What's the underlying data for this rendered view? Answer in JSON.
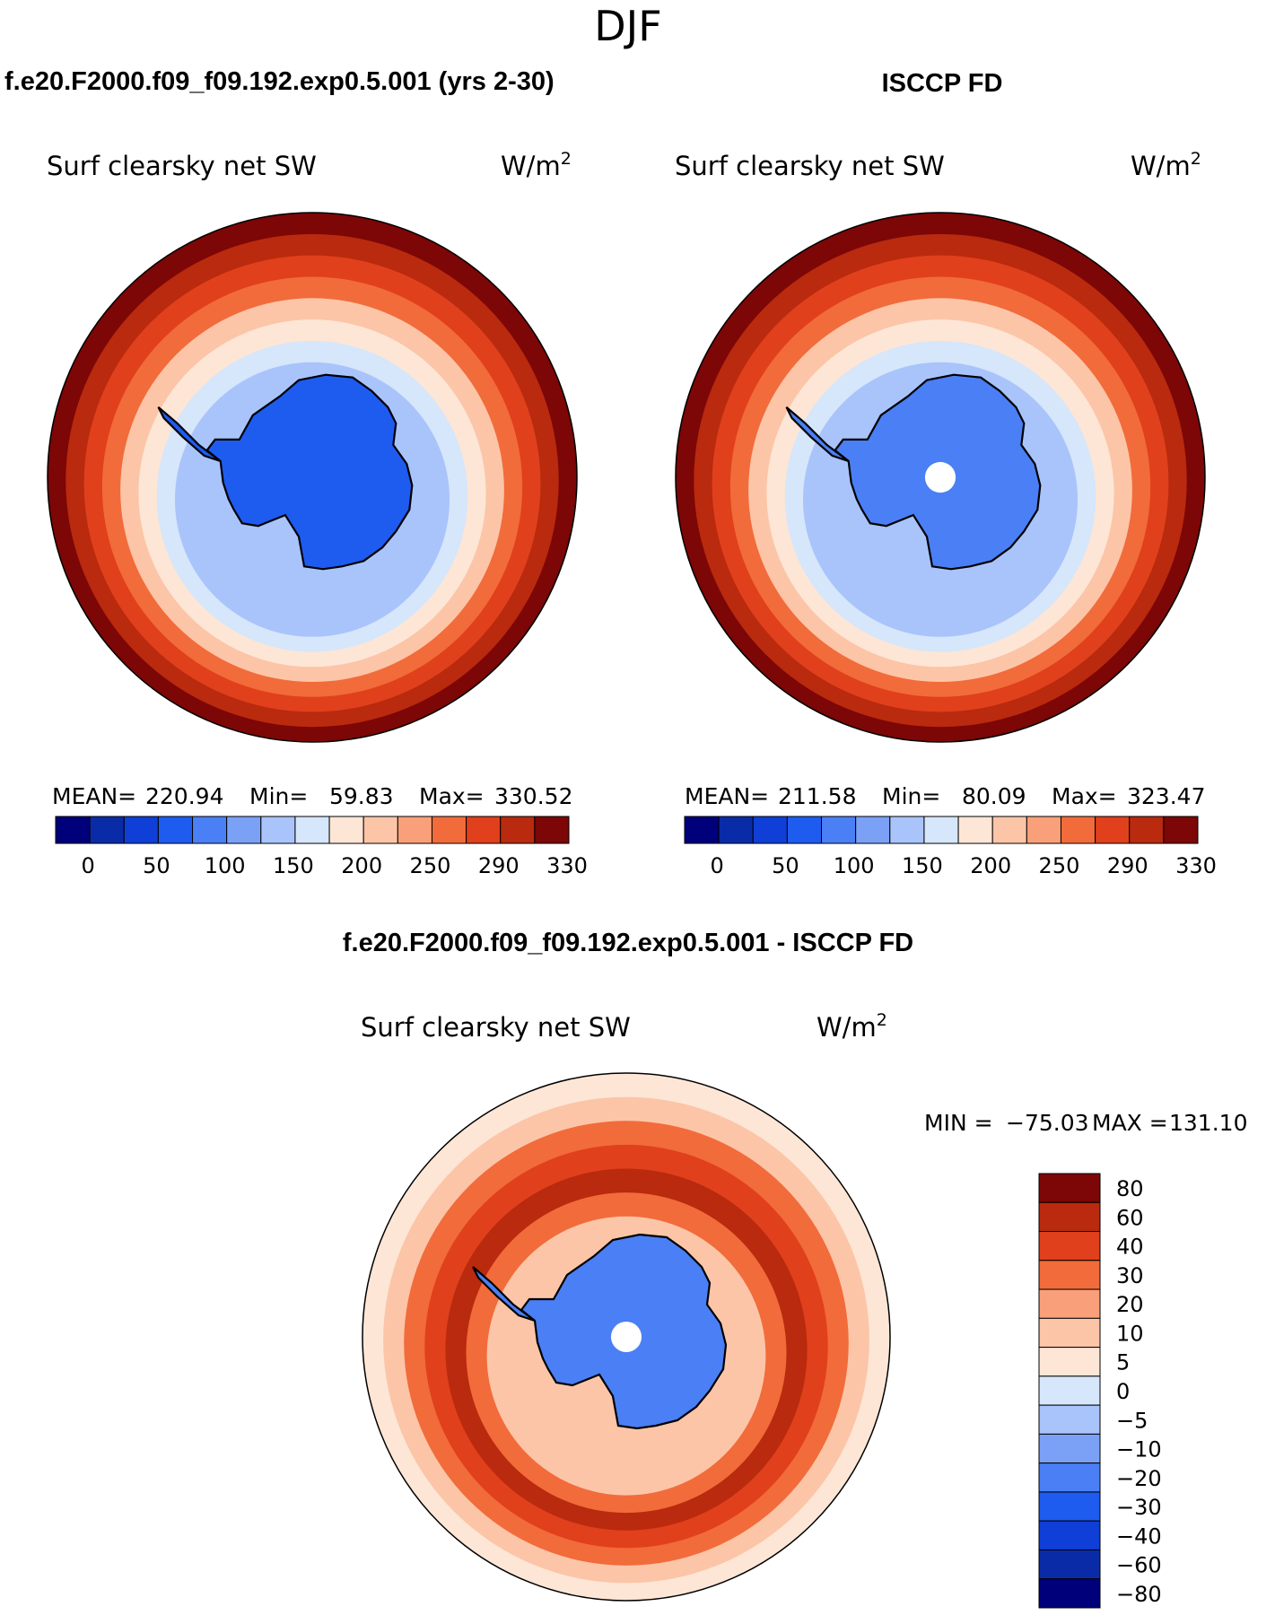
{
  "season": "DJF",
  "panels": {
    "left_title": "f.e20.F2000.f09_f09.192.exp0.5.001 (yrs 2-30)",
    "right_title": "ISCCP FD",
    "bottom_title": "f.e20.F2000.f09_f09.192.exp0.5.001 - ISCCP FD"
  },
  "colors": {
    "absolute_scale": [
      "#00007a",
      "#0a2ba8",
      "#0f3fd6",
      "#1e5cf0",
      "#4a7ff5",
      "#7ba1f7",
      "#a9c4fa",
      "#d6e6fb",
      "#fde6d6",
      "#fcc5a8",
      "#f9a07a",
      "#f26b3a",
      "#e0401b",
      "#b92a0e",
      "#7d0606"
    ],
    "difference_scale": [
      "#7d0606",
      "#b92a0e",
      "#e0401b",
      "#f26b3a",
      "#f9a07a",
      "#fcc5a8",
      "#fde6d6",
      "#d6e6fb",
      "#a9c4fa",
      "#7ba1f7",
      "#4a7ff5",
      "#1e5cf0",
      "#0f3fd6",
      "#0a2ba8",
      "#00007a"
    ],
    "coastline": "#000000",
    "land_model": "#1e5cf0",
    "land_obs": "#4a7ff5",
    "land_diff": "#4a7ff5"
  },
  "chart_data": [
    {
      "type": "heatmap",
      "projection": "south-polar-stereographic",
      "title": "f.e20.F2000.f09_f09.192.exp0.5.001 (yrs 2-30)",
      "variable": "Surf clearsky net SW",
      "units_prefix": "W/m",
      "units_exp": "2",
      "stats": {
        "mean_label": "MEAN=",
        "mean": "220.94",
        "min_label": "Min=",
        "min": "59.83",
        "max_label": "Max=",
        "max": "330.52"
      },
      "colorbar": {
        "levels": [
          0,
          25,
          50,
          75,
          100,
          125,
          150,
          175,
          200,
          225,
          250,
          270,
          290,
          310,
          330
        ],
        "tick_labels": [
          "0",
          "50",
          "100",
          "150",
          "200",
          "250",
          "290",
          "330"
        ],
        "orientation": "horizontal"
      },
      "ring_values": [
        330,
        315,
        295,
        270,
        245,
        215,
        190,
        150
      ]
    },
    {
      "type": "heatmap",
      "projection": "south-polar-stereographic",
      "title": "ISCCP FD",
      "variable": "Surf clearsky net SW",
      "units_prefix": "W/m",
      "units_exp": "2",
      "stats": {
        "mean_label": "MEAN=",
        "mean": "211.58",
        "min_label": "Min=",
        "min": "80.09",
        "max_label": "Max=",
        "max": "323.47"
      },
      "colorbar": {
        "levels": [
          0,
          25,
          50,
          75,
          100,
          125,
          150,
          175,
          200,
          225,
          250,
          270,
          290,
          310,
          330
        ],
        "tick_labels": [
          "0",
          "50",
          "100",
          "150",
          "200",
          "250",
          "290",
          "330"
        ],
        "orientation": "horizontal"
      },
      "ring_values": [
        330,
        315,
        295,
        270,
        245,
        215,
        190,
        150
      ]
    },
    {
      "type": "heatmap",
      "projection": "south-polar-stereographic",
      "title": "f.e20.F2000.f09_f09.192.exp0.5.001 - ISCCP FD",
      "variable": "Surf clearsky net SW",
      "units_prefix": "W/m",
      "units_exp": "2",
      "stats": {
        "min_label": "MIN =",
        "min": "−75.03",
        "max_label": "MAX =",
        "max": "131.10"
      },
      "colorbar": {
        "levels": [
          80,
          60,
          40,
          30,
          20,
          10,
          5,
          0,
          -5,
          -10,
          -20,
          -30,
          -40,
          -60,
          -80
        ],
        "tick_labels": [
          "80",
          "60",
          "40",
          "30",
          "20",
          "10",
          "5",
          "0",
          "−5",
          "−10",
          "−20",
          "−30",
          "−40",
          "−60",
          "−80"
        ],
        "orientation": "vertical"
      },
      "ring_values": [
        3,
        8,
        25,
        35,
        45,
        30,
        10
      ]
    }
  ]
}
